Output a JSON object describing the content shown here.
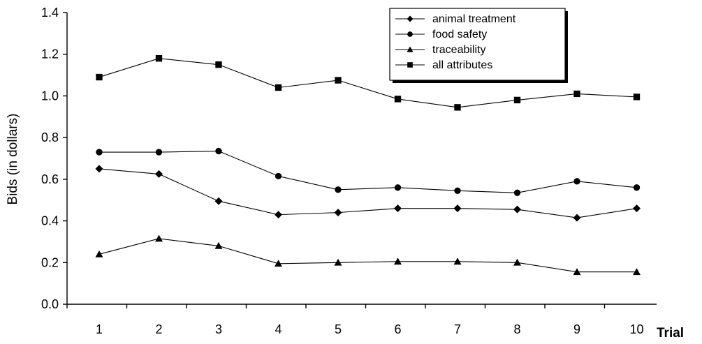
{
  "chart_data": {
    "type": "line",
    "x": [
      1,
      2,
      3,
      4,
      5,
      6,
      7,
      8,
      9,
      10
    ],
    "xlabel": "Trial",
    "ylabel": "Bids (in dollars)",
    "ylim": [
      0.0,
      1.4
    ],
    "yticks": [
      "0.0",
      "0.2",
      "0.4",
      "0.6",
      "0.8",
      "1.0",
      "1.2",
      "1.4"
    ],
    "xticks": [
      "1",
      "2",
      "3",
      "4",
      "5",
      "6",
      "7",
      "8",
      "9",
      "10"
    ],
    "grid": false,
    "legend_position": "top-right",
    "series": [
      {
        "name": "animal treatment",
        "marker": "diamond",
        "values": [
          0.65,
          0.625,
          0.495,
          0.43,
          0.44,
          0.46,
          0.46,
          0.455,
          0.415,
          0.46
        ]
      },
      {
        "name": "food safety",
        "marker": "circle",
        "values": [
          0.73,
          0.73,
          0.735,
          0.615,
          0.55,
          0.56,
          0.545,
          0.535,
          0.59,
          0.56
        ]
      },
      {
        "name": "traceability",
        "marker": "triangle",
        "values": [
          0.24,
          0.315,
          0.28,
          0.195,
          0.2,
          0.205,
          0.205,
          0.2,
          0.155,
          0.155
        ]
      },
      {
        "name": "all attributes",
        "marker": "square",
        "values": [
          1.09,
          1.18,
          1.15,
          1.04,
          1.075,
          0.985,
          0.945,
          0.98,
          1.01,
          0.995
        ]
      }
    ],
    "colors": {
      "line": "#000000",
      "background": "#ffffff"
    }
  }
}
